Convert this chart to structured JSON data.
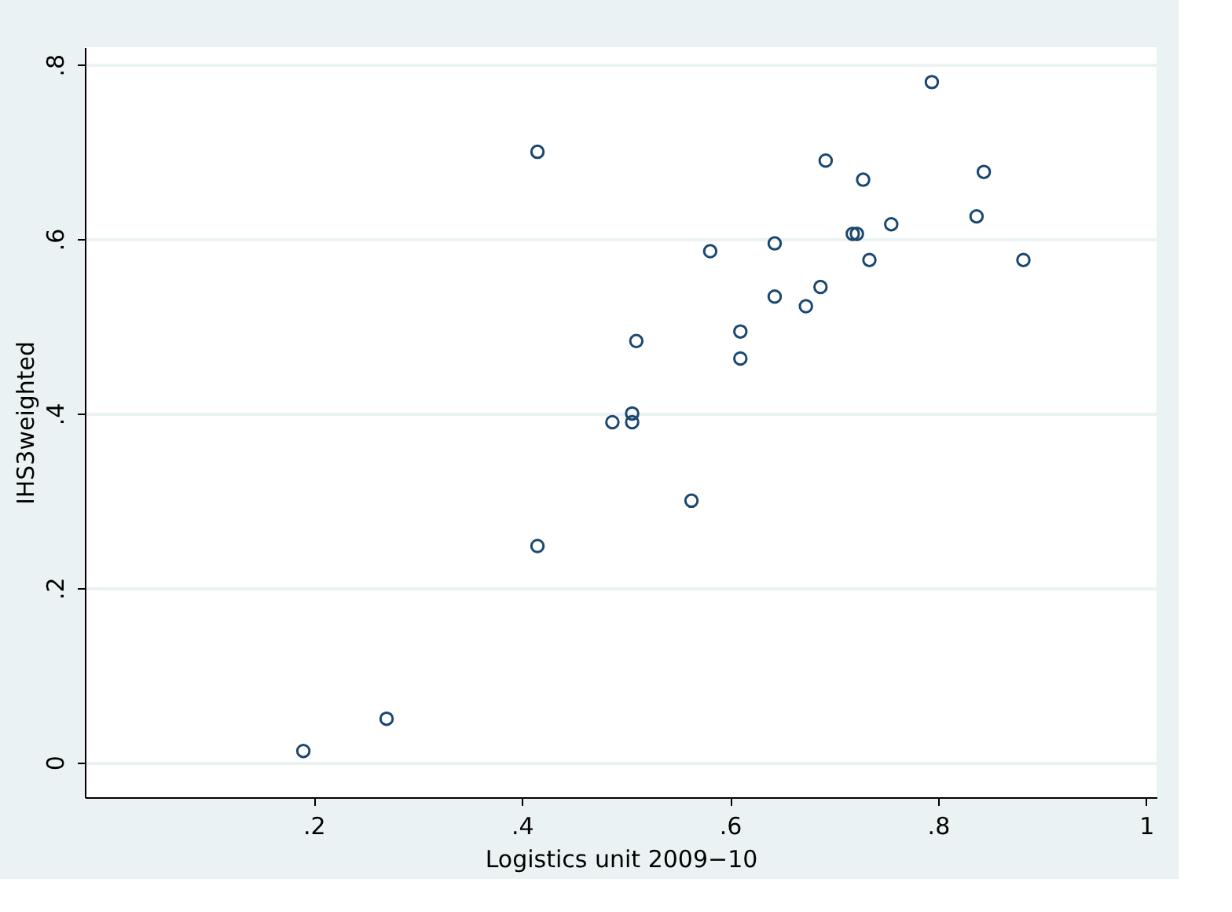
{
  "chart_data": {
    "type": "scatter",
    "xlabel": "Logistics unit 2009−10",
    "ylabel": "IHS3weighted",
    "x": [
      0.19,
      0.27,
      0.415,
      0.415,
      0.487,
      0.506,
      0.506,
      0.51,
      0.563,
      0.581,
      0.61,
      0.61,
      0.643,
      0.643,
      0.673,
      0.687,
      0.692,
      0.718,
      0.722,
      0.728,
      0.734,
      0.755,
      0.794,
      0.837,
      0.844,
      0.882
    ],
    "series": [
      {
        "color": "#1a476f",
        "values": [
          0.013,
          0.05,
          0.7,
          0.248,
          0.39,
          0.4,
          0.39,
          0.483,
          0.3,
          0.586,
          0.463,
          0.494,
          0.595,
          0.534,
          0.523,
          0.545,
          0.69,
          0.606,
          0.606,
          0.668,
          0.576,
          0.617,
          0.78,
          0.626,
          0.677,
          0.576
        ]
      }
    ],
    "xlim": [
      -0.02,
      1.01
    ],
    "ylim": [
      -0.04,
      0.82
    ],
    "xticks": [
      {
        "value": 0.2,
        "label": ".2"
      },
      {
        "value": 0.4,
        "label": ".4"
      },
      {
        "value": 0.6,
        "label": ".6"
      },
      {
        "value": 0.8,
        "label": ".8"
      },
      {
        "value": 1,
        "label": "1"
      }
    ],
    "yticks": [
      {
        "value": 0,
        "label": "0"
      },
      {
        "value": 0.2,
        "label": ".2"
      },
      {
        "value": 0.4,
        "label": ".4"
      },
      {
        "value": 0.6,
        "label": ".6"
      },
      {
        "value": 0.8,
        "label": ".8"
      }
    ],
    "grid": "y",
    "marker": "circle"
  }
}
